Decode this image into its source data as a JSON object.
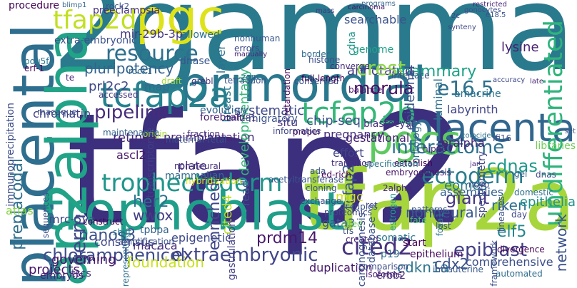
{
  "words": [
    {
      "text": "tfap2",
      "color": "#3b2f7e",
      "rot": 0
    },
    {
      "text": "2gamma",
      "color": "#2a7a8e",
      "rot": 0
    },
    {
      "text": "tfap2a",
      "color": "#a6d63c",
      "rot": 0
    },
    {
      "text": "trophoblast",
      "color": "#1f9e89",
      "rot": 0
    },
    {
      "text": "placental",
      "color": "#2e6e8e",
      "rot": 90
    },
    {
      "text": "ap2alpha",
      "color": "#20a386",
      "rot": 90
    },
    {
      "text": "pgc",
      "color": "#dde318",
      "rot": 0
    },
    {
      "text": "primordial",
      "color": "#2a788e",
      "rot": 0
    },
    {
      "text": "placenta",
      "color": "#31668e",
      "rot": 0
    },
    {
      "text": "tcfap2a",
      "color": "#26828e",
      "rot": 0
    },
    {
      "text": "pgcs",
      "color": "#5ec962",
      "rot": 0
    },
    {
      "text": "tcfap2b",
      "color": "#35b779",
      "rot": 0
    },
    {
      "text": "trophectoderm",
      "color": "#1f968b",
      "rot": 0
    },
    {
      "text": "ectoderm",
      "color": "#287d8e",
      "rot": 0
    },
    {
      "text": "interactome",
      "color": "#2c718e",
      "rot": 0
    },
    {
      "text": "tfap2d",
      "color": "#c2df23",
      "rot": 0
    },
    {
      "text": "pipeline",
      "color": "#472c7a",
      "rot": 0
    },
    {
      "text": "resource",
      "color": "#2d708e",
      "rot": 0
    },
    {
      "text": "pluripotency",
      "color": "#33638d",
      "rot": 0
    },
    {
      "text": "prl2c2",
      "color": "#3f4889",
      "rot": 0
    },
    {
      "text": "annotated",
      "color": "#443a83",
      "rot": 0
    },
    {
      "text": "morula",
      "color": "#471063",
      "rot": 0
    },
    {
      "text": "crest",
      "color": "#8fd744",
      "rot": 0
    },
    {
      "text": "mammary",
      "color": "#1fa187",
      "rot": 0
    },
    {
      "text": "e16.5",
      "color": "#2d708e",
      "rot": 0
    },
    {
      "text": "labyrinth",
      "color": "#414487",
      "rot": 0
    },
    {
      "text": "undifferentiated",
      "color": "#2fb47c",
      "rot": 90
    },
    {
      "text": "cited2",
      "color": "#46327e",
      "rot": 0
    },
    {
      "text": "extraembryonic",
      "color": "#404688",
      "rot": 0
    },
    {
      "text": "chloramphenicol",
      "color": "#3e4c8a",
      "rot": 0
    },
    {
      "text": "nanos3",
      "color": "#3b528b",
      "rot": 0
    },
    {
      "text": "epiblast",
      "color": "#424086",
      "rot": 0
    },
    {
      "text": "foundation",
      "color": "#c8e020",
      "rot": 0
    },
    {
      "text": "her2",
      "color": "#2c728e",
      "rot": 0
    },
    {
      "text": "wwox",
      "color": "#433e85",
      "rot": 0
    },
    {
      "text": "eomes",
      "color": "#2a788e",
      "rot": 0
    },
    {
      "text": "giant",
      "color": "#453781",
      "rot": 0
    },
    {
      "text": "riken",
      "color": "#2e6d8e",
      "rot": 0
    },
    {
      "text": "nonneural",
      "color": "#38588c",
      "rot": 0
    },
    {
      "text": "cdnas",
      "color": "#1f9a8a",
      "rot": 0
    },
    {
      "text": "prdm14",
      "color": "#48186a",
      "rot": 0
    },
    {
      "text": "cdkn1a",
      "color": "#2b758e",
      "rot": 0
    },
    {
      "text": "cdx2",
      "color": "#3c508b",
      "rot": 0
    },
    {
      "text": "elf5",
      "color": "#25858e",
      "rot": 0
    },
    {
      "text": "blastocyst",
      "color": "#46307e",
      "rot": 0
    },
    {
      "text": "chip-seq",
      "color": "#3b528b",
      "rot": 0
    },
    {
      "text": "preimplantation",
      "color": "#482575",
      "rot": 0
    },
    {
      "text": "mammalian",
      "color": "#2f6c8e",
      "rot": 0
    },
    {
      "text": "assemblies",
      "color": "#34618d",
      "rot": 0
    },
    {
      "text": "germ",
      "color": "#3e4989",
      "rot": 90
    },
    {
      "text": "tcfap2",
      "color": "#3a548c",
      "rot": 90
    },
    {
      "text": "retinoic",
      "color": "#482878",
      "rot": 0
    },
    {
      "text": "ascl2",
      "color": "#48186a",
      "rot": 0
    },
    {
      "text": "mrc-5va",
      "color": "#3f4788",
      "rot": 0
    },
    {
      "text": "tpbpa",
      "color": "#33628d",
      "rot": 0
    },
    {
      "text": "consensus",
      "color": "#404588",
      "rot": 0
    },
    {
      "text": "epigenetic",
      "color": "#3e4a89",
      "rot": 0
    },
    {
      "text": "macaca",
      "color": "#472f7d",
      "rot": 0
    },
    {
      "text": "plate",
      "color": "#46307e",
      "rot": 0
    },
    {
      "text": "enriched",
      "color": "#3f4889",
      "rot": 90
    },
    {
      "text": "cited4",
      "color": "#bddf26",
      "rot": 90
    },
    {
      "text": "read",
      "color": "#3b528b",
      "rot": 90
    },
    {
      "text": "mgc",
      "color": "#d0e11c",
      "rot": 0
    },
    {
      "text": "gata3",
      "color": "#39568c",
      "rot": 0
    },
    {
      "text": "erbb2",
      "color": "#472c7a",
      "rot": 0
    },
    {
      "text": "somatic",
      "color": "#2a788e",
      "rot": 0
    },
    {
      "text": "network",
      "color": "#3b528b",
      "rot": 90
    },
    {
      "text": "epithelia",
      "color": "#21918c",
      "rot": 0
    },
    {
      "text": "comprehensive",
      "color": "#3c4f8a",
      "rot": 0
    },
    {
      "text": "duplication",
      "color": "#48196b",
      "rot": 0
    },
    {
      "text": "governing",
      "color": "#481668",
      "rot": 0
    },
    {
      "text": "projects",
      "color": "#48196b",
      "rot": 0
    },
    {
      "text": "tscs",
      "color": "#46337f",
      "rot": 0
    },
    {
      "text": "embryos",
      "color": "#482576",
      "rot": 0
    },
    {
      "text": "preplacodal",
      "color": "#2e6f8e",
      "rot": 90
    },
    {
      "text": "immunoprecipitation",
      "color": "#3d4d8a",
      "rot": 90
    },
    {
      "text": "atlas",
      "color": "#8bd646",
      "rot": 0
    },
    {
      "text": "chromatin",
      "color": "#424186",
      "rot": 0
    },
    {
      "text": "transcriptome",
      "color": "#433d84",
      "rot": 90
    },
    {
      "text": "gastrulation",
      "color": "#423f85",
      "rot": 90
    },
    {
      "text": "hybridization",
      "color": "#dde318",
      "rot": 0
    },
    {
      "text": "non-neural",
      "color": "#46327e",
      "rot": 0
    },
    {
      "text": "systematic",
      "color": "#3e4a89",
      "rot": 0
    },
    {
      "text": "developmentally",
      "color": "#35b779",
      "rot": 90
    },
    {
      "text": "epidermal",
      "color": "#3a548c",
      "rot": 90
    },
    {
      "text": "luminal",
      "color": "#2d708e",
      "rot": 90
    },
    {
      "text": "pregnancy",
      "color": "#472e7c",
      "rot": 0
    },
    {
      "text": "effort",
      "color": "#414487",
      "rot": 0
    },
    {
      "text": "amacrine",
      "color": "#2b748e",
      "rot": 0
    },
    {
      "text": "eralpha",
      "color": "#482475",
      "rot": 0
    },
    {
      "text": "spectrometry",
      "color": "#404588",
      "rot": 90
    },
    {
      "text": "libraries",
      "color": "#70cf57",
      "rot": 0
    },
    {
      "text": "gestational",
      "color": "#482677",
      "rot": 0
    },
    {
      "text": "ontology",
      "color": "#2e6e8e",
      "rot": 90
    },
    {
      "text": "lysine",
      "color": "#482071",
      "rot": 0
    },
    {
      "text": "genome",
      "color": "#1fa088",
      "rot": 0
    },
    {
      "text": "breast",
      "color": "#2a788e",
      "rot": 90
    },
    {
      "text": "situ",
      "color": "#46337f",
      "rot": 0
    },
    {
      "text": "layer",
      "color": "#2c718e",
      "rot": 90
    },
    {
      "text": "searchable",
      "color": "#3b528b",
      "rot": 0
    },
    {
      "text": "cdna",
      "color": "#1f968b",
      "rot": 90
    },
    {
      "text": "allowed",
      "color": "#2d708e",
      "rot": 0
    },
    {
      "text": "mir-29b-3p",
      "color": "#453882",
      "rot": 0
    },
    {
      "text": "dnase",
      "color": "#39568c",
      "rot": 0
    },
    {
      "text": "map",
      "color": "#2e6d8e",
      "rot": 0
    },
    {
      "text": "evolution",
      "color": "#33638d",
      "rot": 0
    },
    {
      "text": "migratory",
      "color": "#3b528b",
      "rot": 0
    },
    {
      "text": "forebrain",
      "color": "#481c6e",
      "rot": 0
    },
    {
      "text": "znf281",
      "color": "#463480",
      "rot": 0
    },
    {
      "text": "preeclampsia",
      "color": "#46307e",
      "rot": 0
    },
    {
      "text": "extra-embryonic",
      "color": "#3b528b",
      "rot": 0
    },
    {
      "text": "procedure",
      "color": "#440154",
      "rot": 0
    },
    {
      "text": "blimp1",
      "color": "#31688e",
      "rot": 0
    },
    {
      "text": "rock2",
      "color": "#3b528b",
      "rot": 0
    },
    {
      "text": "nonhuman",
      "color": "#38588c",
      "rot": 0
    },
    {
      "text": "errors",
      "color": "#3e4989",
      "rot": 0
    },
    {
      "text": "manually",
      "color": "#482475",
      "rot": 0
    },
    {
      "text": "mass",
      "color": "#443983",
      "rot": 0
    },
    {
      "text": "carcinoma",
      "color": "#481467",
      "rot": 0
    },
    {
      "text": "programs",
      "color": "#33638d",
      "rot": 0
    },
    {
      "text": "gonocytes",
      "color": "#3d4e8a",
      "rot": 0
    },
    {
      "text": "restricted",
      "color": "#482677",
      "rot": 0
    },
    {
      "text": "2c",
      "color": "#404588",
      "rot": 0
    },
    {
      "text": "e18.5",
      "color": "#3a548c",
      "rot": 0
    },
    {
      "text": "synteny",
      "color": "#404688",
      "rot": 0
    },
    {
      "text": "pou5f1",
      "color": "#2a788e",
      "rot": 0
    },
    {
      "text": "erf-1",
      "color": "#46085c",
      "rot": 0
    },
    {
      "text": "te",
      "color": "#482677",
      "rot": 0
    },
    {
      "text": "rock1",
      "color": "#31688e",
      "rot": 0
    },
    {
      "text": "draft",
      "color": "#a2da37",
      "rot": 0
    },
    {
      "text": "grebl",
      "color": "#46327e",
      "rot": 0
    },
    {
      "text": "tetraodon",
      "color": "#3a548c",
      "rot": 0
    },
    {
      "text": "zone",
      "color": "#2c728e",
      "rot": 0
    },
    {
      "text": "conserved",
      "color": "#3b528b",
      "rot": 0
    },
    {
      "text": "border",
      "color": "#2f6b8e",
      "rot": 0
    },
    {
      "text": "histone",
      "color": "#3c4f8a",
      "rot": 0
    },
    {
      "text": "converge",
      "color": "#46307e",
      "rot": 0
    },
    {
      "text": "full-length",
      "color": "#440154",
      "rot": 0
    },
    {
      "text": "retardation",
      "color": "#46085c",
      "rot": 90
    },
    {
      "text": "accuracy",
      "color": "#3e4989",
      "rot": 0
    },
    {
      "text": "late",
      "color": "#482677",
      "rot": 0
    },
    {
      "text": "set",
      "color": "#3b528b",
      "rot": 0
    },
    {
      "text": "interface",
      "color": "#3a538b",
      "rot": 0
    },
    {
      "text": "balance",
      "color": "#481769",
      "rot": 0
    },
    {
      "text": "accessed",
      "color": "#453882",
      "rot": 0
    },
    {
      "text": "origin",
      "color": "#a8db34",
      "rot": 0
    },
    {
      "text": "maternal-fetal",
      "color": "#3b528b",
      "rot": 0
    },
    {
      "text": "fraction",
      "color": "#472d7b",
      "rot": 0
    },
    {
      "text": "informatics",
      "color": "#404688",
      "rot": 0
    },
    {
      "text": "proper",
      "color": "#48186a",
      "rot": 0
    },
    {
      "text": "coincided",
      "color": "#2d708e",
      "rot": 0
    },
    {
      "text": "ifi16",
      "color": "#3d4d8a",
      "rot": 0
    },
    {
      "text": "hippo",
      "color": "#482475",
      "rot": 0
    },
    {
      "text": "macaque",
      "color": "#3b528b",
      "rot": 0
    },
    {
      "text": "maintenance",
      "color": "#33638d",
      "rot": 0
    },
    {
      "text": "establish",
      "color": "#440154",
      "rot": 0
    },
    {
      "text": "jar",
      "color": "#472f7d",
      "rot": 0
    },
    {
      "text": "dnas",
      "color": "#3e4a89",
      "rot": 0
    },
    {
      "text": "gel",
      "color": "#31688e",
      "rot": 0
    },
    {
      "text": "ada",
      "color": "#3b528b",
      "rot": 0
    },
    {
      "text": "specification",
      "color": "#2a788e",
      "rot": 0
    },
    {
      "text": "ed-rich",
      "color": "#440154",
      "rot": 0
    },
    {
      "text": "2alpha",
      "color": "#482878",
      "rot": 0
    },
    {
      "text": "exchange",
      "color": "#3e4989",
      "rot": 0
    },
    {
      "text": "transition",
      "color": "#46307e",
      "rot": 0
    },
    {
      "text": "cloning",
      "color": "#3b528b",
      "rot": 0
    },
    {
      "text": "proteomics",
      "color": "#404588",
      "rot": 0
    },
    {
      "text": "occupies",
      "color": "#3a548c",
      "rot": 0
    },
    {
      "text": "ret",
      "color": "#3e4989",
      "rot": 0
    },
    {
      "text": "patterns",
      "color": "#38588c",
      "rot": 0
    },
    {
      "text": "estrogen",
      "color": "#1f9e89",
      "rot": 90
    },
    {
      "text": "foxa1",
      "color": "#2a788e",
      "rot": 90
    },
    {
      "text": "lost",
      "color": "#3b528b",
      "rot": 0
    },
    {
      "text": "fate",
      "color": "#43bf71",
      "rot": 0
    },
    {
      "text": "cited",
      "color": "#6ece58",
      "rot": 0
    },
    {
      "text": "tfs",
      "color": "#3b528b",
      "rot": 0
    },
    {
      "text": "created",
      "color": "#482677",
      "rot": 0
    },
    {
      "text": "lineages",
      "color": "#3b528b",
      "rot": 90
    },
    {
      "text": "day",
      "color": "#404688",
      "rot": 0
    },
    {
      "text": "domestic",
      "color": "#2d708e",
      "rot": 0
    },
    {
      "text": "novo",
      "color": "#3e4989",
      "rot": 0
    },
    {
      "text": "start",
      "color": "#440154",
      "rot": 0
    },
    {
      "text": "epithelium",
      "color": "#46085c",
      "rot": 0
    },
    {
      "text": "p19",
      "color": "#2f6c8e",
      "rot": 0
    },
    {
      "text": "database",
      "color": "#3a548c",
      "rot": 90
    },
    {
      "text": "carcinogenesis",
      "color": "#3b528b",
      "rot": 90
    },
    {
      "text": "comparison",
      "color": "#3d4d8a",
      "rot": 0
    },
    {
      "text": "isoforms",
      "color": "#482071",
      "rot": 0
    },
    {
      "text": "intrauterine",
      "color": "#38588c",
      "rot": 0
    },
    {
      "text": "automated",
      "color": "#2e6e8e",
      "rot": 0
    },
    {
      "text": "framework",
      "color": "#3b528b",
      "rot": 90
    },
    {
      "text": "divergence",
      "color": "#440154",
      "rot": 0
    },
    {
      "text": "embryogenesis",
      "color": "#48186a",
      "rot": 0
    },
    {
      "text": "acetyltransferase",
      "color": "#3a548c",
      "rot": 0
    },
    {
      "text": "representing",
      "color": "#2d708e",
      "rot": 90
    },
    {
      "text": "amplification",
      "color": "#3b528b",
      "rot": 0
    },
    {
      "text": "shift",
      "color": "#2a788e",
      "rot": 0
    },
    {
      "text": "construct",
      "color": "#440154",
      "rot": 0
    },
    {
      "text": "sequences",
      "color": "#3b528b",
      "rot": 90
    }
  ]
}
